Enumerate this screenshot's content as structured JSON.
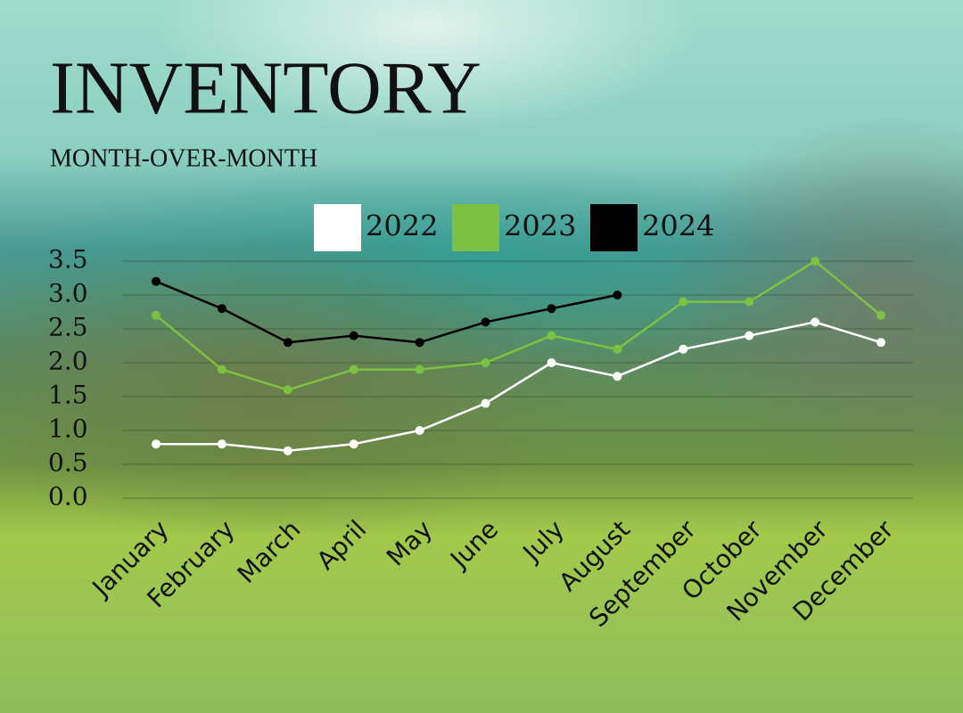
{
  "chart_data": {
    "type": "line",
    "title": "INVENTORY",
    "subtitle": "MONTH-OVER-MONTH",
    "categories": [
      "January",
      "February",
      "March",
      "April",
      "May",
      "June",
      "July",
      "August",
      "September",
      "October",
      "November",
      "December"
    ],
    "series": [
      {
        "name": "2022",
        "color": "#ffffff",
        "values": [
          0.8,
          0.8,
          0.7,
          0.8,
          1.0,
          1.4,
          2.0,
          1.8,
          2.2,
          2.4,
          2.6,
          2.3
        ]
      },
      {
        "name": "2023",
        "color": "#7dc142",
        "values": [
          2.7,
          1.9,
          1.6,
          1.9,
          1.9,
          2.0,
          2.4,
          2.2,
          2.9,
          2.9,
          3.5,
          2.7
        ]
      },
      {
        "name": "2024",
        "color": "#000000",
        "values": [
          3.2,
          2.8,
          2.3,
          2.4,
          2.3,
          2.6,
          2.8,
          3.0,
          null,
          null,
          null,
          null
        ]
      }
    ],
    "ylim": [
      0,
      3.5
    ],
    "yticks": [
      {
        "value": 0,
        "label": "0.0"
      },
      0.5,
      {
        "value": 1,
        "label": "1.0"
      },
      1.5,
      {
        "value": 2,
        "label": "2.0"
      },
      2.5,
      {
        "value": 3,
        "label": "3.0"
      },
      3.5
    ],
    "grid": true,
    "legend": "top"
  }
}
